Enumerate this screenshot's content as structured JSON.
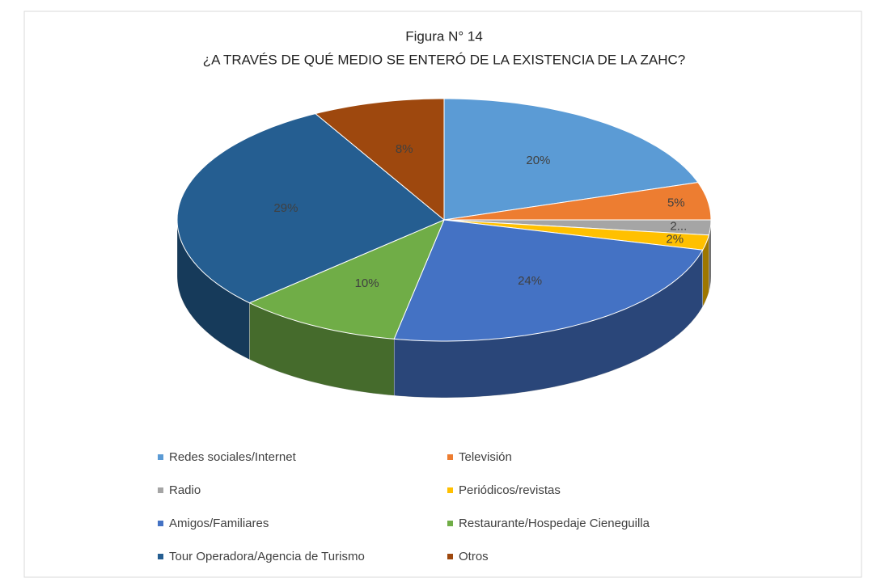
{
  "chart_data": {
    "type": "pie",
    "title": "Figura N° 14",
    "subtitle": "¿A TRAVÉS DE QUÉ MEDIO SE ENTERÓ DE LA EXISTENCIA DE LA ZAHC?",
    "categories": [
      "Redes sociales/Internet",
      "Televisión",
      "Radio",
      "Periódicos/revistas",
      "Amigos/Familiares",
      "Restaurante/Hospedaje Cieneguilla",
      "Tour Operadora/Agencia de Turismo",
      "Otros"
    ],
    "values": [
      20,
      5,
      2,
      2,
      24,
      10,
      29,
      8
    ],
    "value_labels": [
      "20%",
      "5%",
      "2...",
      "2%",
      "24%",
      "10%",
      "29%",
      "8%"
    ],
    "colors": [
      "#5b9bd5",
      "#ed7d31",
      "#a5a5a5",
      "#ffc000",
      "#4472c4",
      "#70ad47",
      "#255e91",
      "#9e480e"
    ],
    "legend": "bottom"
  }
}
